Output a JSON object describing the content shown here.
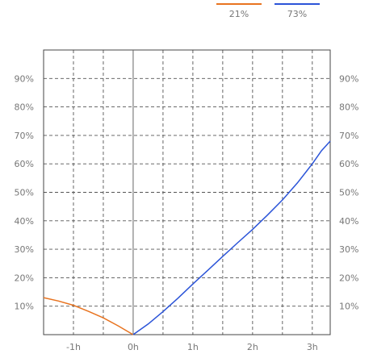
{
  "chart_data": {
    "type": "line",
    "x_unit": "h",
    "xlim": [
      -1.5,
      3.3
    ],
    "ylim": [
      0,
      100
    ],
    "x_ticks": [
      {
        "value": -1,
        "label": "-1h"
      },
      {
        "value": 0,
        "label": "0h"
      },
      {
        "value": 1,
        "label": "1h"
      },
      {
        "value": 2,
        "label": "2h"
      },
      {
        "value": 3,
        "label": "3h"
      }
    ],
    "y_ticks": [
      {
        "value": 10,
        "label": "10%"
      },
      {
        "value": 20,
        "label": "20%"
      },
      {
        "value": 30,
        "label": "30%"
      },
      {
        "value": 40,
        "label": "40%"
      },
      {
        "value": 50,
        "label": "50%"
      },
      {
        "value": 60,
        "label": "60%"
      },
      {
        "value": 70,
        "label": "70%"
      },
      {
        "value": 80,
        "label": "80%"
      },
      {
        "value": 90,
        "label": "90%"
      }
    ],
    "grid": true,
    "legend_position": "top-right",
    "series": [
      {
        "name": "21%",
        "color": "#e8731f",
        "points": [
          [
            -1.5,
            13
          ],
          [
            -1.25,
            11.8
          ],
          [
            -1.0,
            10.3
          ],
          [
            -0.75,
            8.2
          ],
          [
            -0.5,
            5.9
          ],
          [
            -0.25,
            3.1
          ],
          [
            0,
            0
          ]
        ]
      },
      {
        "name": "73%",
        "color": "#2b54d8",
        "points": [
          [
            0,
            0
          ],
          [
            0.25,
            3.7
          ],
          [
            0.5,
            8.1
          ],
          [
            0.75,
            12.8
          ],
          [
            1.0,
            17.8
          ],
          [
            1.25,
            22.6
          ],
          [
            1.5,
            27.5
          ],
          [
            1.75,
            32.3
          ],
          [
            2.0,
            37.0
          ],
          [
            2.25,
            42.0
          ],
          [
            2.5,
            47.3
          ],
          [
            2.75,
            53.3
          ],
          [
            3.0,
            60.0
          ],
          [
            3.15,
            64.5
          ],
          [
            3.3,
            68.0
          ]
        ]
      }
    ]
  }
}
